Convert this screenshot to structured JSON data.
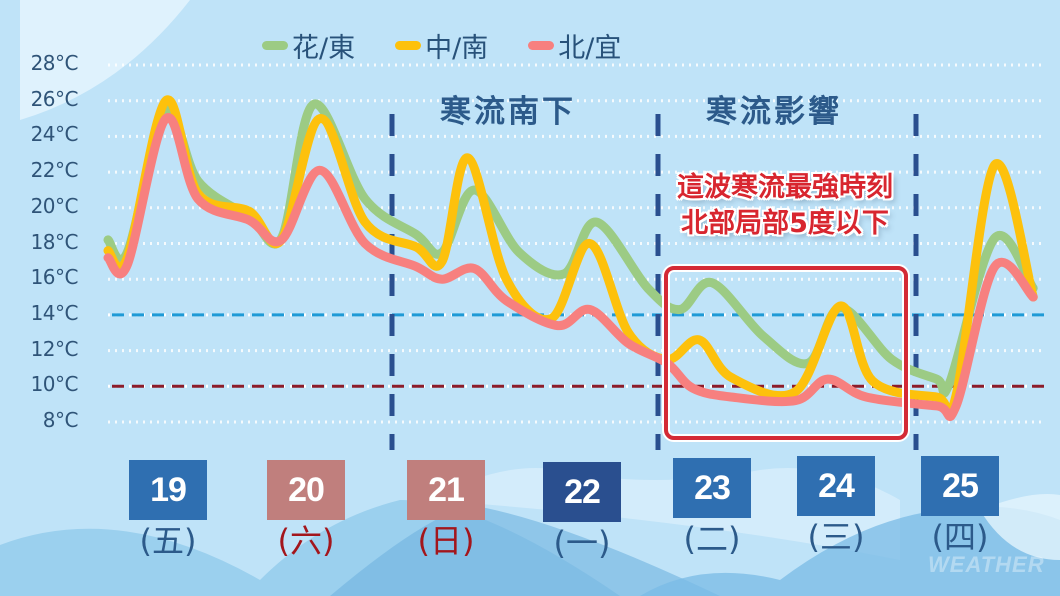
{
  "legend": [
    {
      "label": "花/東",
      "color": "#9ccb84"
    },
    {
      "label": "中/南",
      "color": "#fdc10c"
    },
    {
      "label": "北/宜",
      "color": "#f7807f"
    }
  ],
  "y_axis": {
    "labels": [
      "28°C",
      "26°C",
      "24°C",
      "22°C",
      "20°C",
      "18°C",
      "16°C",
      "14°C",
      "12°C",
      "10°C",
      "8°C"
    ]
  },
  "phases": [
    {
      "label": "寒流南下"
    },
    {
      "label": "寒流影響"
    }
  ],
  "callout": {
    "line1": "這波寒流最強時刻",
    "line2": "北部局部5度以下"
  },
  "days": [
    {
      "date": "19",
      "weekday": "(五)",
      "box_color": "#2f6fb1",
      "text_color": "#2c5a8a"
    },
    {
      "date": "20",
      "weekday": "(六)",
      "box_color": "#c07f7d",
      "text_color": "#a3161c"
    },
    {
      "date": "21",
      "weekday": "(日)",
      "box_color": "#c07f7d",
      "text_color": "#a3161c"
    },
    {
      "date": "22",
      "weekday": "(一)",
      "box_color": "#2a4f8f",
      "text_color": "#2c5a8a"
    },
    {
      "date": "23",
      "weekday": "(二)",
      "box_color": "#2f6fb1",
      "text_color": "#2c5a8a"
    },
    {
      "date": "24",
      "weekday": "(三)",
      "box_color": "#2f6fb1",
      "text_color": "#2c5a8a"
    },
    {
      "date": "25",
      "weekday": "(四)",
      "box_color": "#2f6fb1",
      "text_color": "#2c5a8a"
    }
  ],
  "watermark": "WEATHER",
  "colors": {
    "background": "#bfe3f8",
    "ref_line_14": "#1f9ad6",
    "ref_line_10": "#8c1c2a",
    "phase_divider": "#2a4f8f",
    "highlight_box": "#d42a35"
  },
  "chart_data": {
    "type": "line",
    "title": "",
    "xlabel": "",
    "ylabel": "°C",
    "ylim": [
      8,
      28
    ],
    "y_ticks": [
      28,
      26,
      24,
      22,
      20,
      18,
      16,
      14,
      12,
      10,
      8
    ],
    "grid": "dotted horizontal",
    "legend_position": "top",
    "categories": [
      "19(五)",
      "20(六)",
      "21(日)",
      "22(一)",
      "23(二)",
      "24(三)",
      "25(四)"
    ],
    "reference_lines": [
      {
        "value": 14,
        "color": "#1f9ad6",
        "style": "dashed"
      },
      {
        "value": 10,
        "color": "#8c1c2a",
        "style": "dashed"
      }
    ],
    "phase_dividers_between_days": [
      [
        "20",
        "21"
      ],
      [
        "22",
        "23"
      ],
      [
        "24",
        "25"
      ]
    ],
    "annotations": [
      {
        "text": "寒流南下",
        "span": [
          "21",
          "22"
        ]
      },
      {
        "text": "寒流影響",
        "span": [
          "23",
          "24"
        ]
      },
      {
        "text": "這波寒流最強時刻 北部局部5度以下",
        "span": [
          "23",
          "24"
        ],
        "boxed": true
      }
    ],
    "series": [
      {
        "name": "花/東",
        "color": "#9ccb84",
        "points": [
          [
            0,
            18.2
          ],
          [
            0.15,
            17.5
          ],
          [
            0.45,
            25.4
          ],
          [
            0.7,
            21.5
          ],
          [
            1.1,
            19.5
          ],
          [
            1.35,
            18.3
          ],
          [
            1.6,
            25.8
          ],
          [
            2.0,
            20.5
          ],
          [
            2.4,
            18.5
          ],
          [
            2.6,
            17.5
          ],
          [
            2.85,
            21.0
          ],
          [
            3.2,
            17.5
          ],
          [
            3.55,
            16.3
          ],
          [
            3.8,
            19.2
          ],
          [
            4.2,
            15.5
          ],
          [
            4.45,
            14.3
          ],
          [
            4.7,
            15.8
          ],
          [
            5.1,
            12.8
          ],
          [
            5.45,
            11.3
          ],
          [
            5.7,
            14.4
          ],
          [
            6.1,
            11.5
          ],
          [
            6.45,
            10.4
          ],
          [
            6.55,
            10.2
          ],
          [
            6.9,
            18.3
          ],
          [
            7.2,
            15.5
          ]
        ]
      },
      {
        "name": "中/南",
        "color": "#fdc10c",
        "points": [
          [
            0,
            17.6
          ],
          [
            0.15,
            17.2
          ],
          [
            0.45,
            26.0
          ],
          [
            0.7,
            20.8
          ],
          [
            1.1,
            19.8
          ],
          [
            1.35,
            18.2
          ],
          [
            1.65,
            25.0
          ],
          [
            2.0,
            19.2
          ],
          [
            2.4,
            17.8
          ],
          [
            2.6,
            17.0
          ],
          [
            2.8,
            22.8
          ],
          [
            3.1,
            16.0
          ],
          [
            3.45,
            13.8
          ],
          [
            3.75,
            18.0
          ],
          [
            4.05,
            13.0
          ],
          [
            4.35,
            11.5
          ],
          [
            4.6,
            12.6
          ],
          [
            4.85,
            10.5
          ],
          [
            5.35,
            9.7
          ],
          [
            5.7,
            14.5
          ],
          [
            5.95,
            10.3
          ],
          [
            6.45,
            9.4
          ],
          [
            6.6,
            9.5
          ],
          [
            6.9,
            22.4
          ],
          [
            7.2,
            15.0
          ]
        ]
      },
      {
        "name": "北/宜",
        "color": "#f7807f",
        "points": [
          [
            0,
            17.2
          ],
          [
            0.15,
            16.8
          ],
          [
            0.45,
            25.0
          ],
          [
            0.7,
            20.5
          ],
          [
            1.1,
            19.3
          ],
          [
            1.35,
            18.2
          ],
          [
            1.65,
            22.1
          ],
          [
            2.0,
            18.0
          ],
          [
            2.4,
            16.7
          ],
          [
            2.6,
            16.0
          ],
          [
            2.85,
            16.6
          ],
          [
            3.1,
            14.8
          ],
          [
            3.5,
            13.4
          ],
          [
            3.75,
            14.3
          ],
          [
            4.05,
            12.4
          ],
          [
            4.35,
            11.3
          ],
          [
            4.55,
            9.9
          ],
          [
            4.85,
            9.4
          ],
          [
            5.35,
            9.2
          ],
          [
            5.6,
            10.4
          ],
          [
            5.9,
            9.4
          ],
          [
            6.45,
            8.9
          ],
          [
            6.6,
            8.9
          ],
          [
            6.9,
            16.7
          ],
          [
            7.2,
            15.0
          ]
        ]
      }
    ]
  }
}
